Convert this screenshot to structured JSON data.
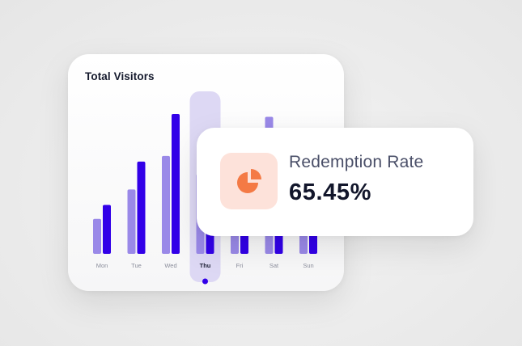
{
  "visitors_card": {
    "title": "Total Visitors",
    "selected_day": "Thu"
  },
  "redemption_card": {
    "icon": "pie-chart-icon",
    "label": "Redemption Rate",
    "value": "65.45%"
  },
  "colors": {
    "primary_bar": "#3200e8",
    "secondary_bar": "#9a89e8",
    "highlight": "#ddd8f4",
    "icon_bg": "#fde2da",
    "icon": "#f47a45"
  },
  "chart_data": {
    "type": "bar",
    "title": "Total Visitors",
    "categories": [
      "Mon",
      "Tue",
      "Wed",
      "Thu",
      "Fri",
      "Sat",
      "Sun"
    ],
    "series": [
      {
        "values": [
          25,
          46,
          70,
          57,
          33,
          98,
          30
        ]
      },
      {
        "values": [
          35,
          66,
          100,
          50,
          23,
          80,
          20
        ]
      }
    ],
    "ylim": [
      0,
      100
    ],
    "grid": false,
    "legend": "none"
  }
}
